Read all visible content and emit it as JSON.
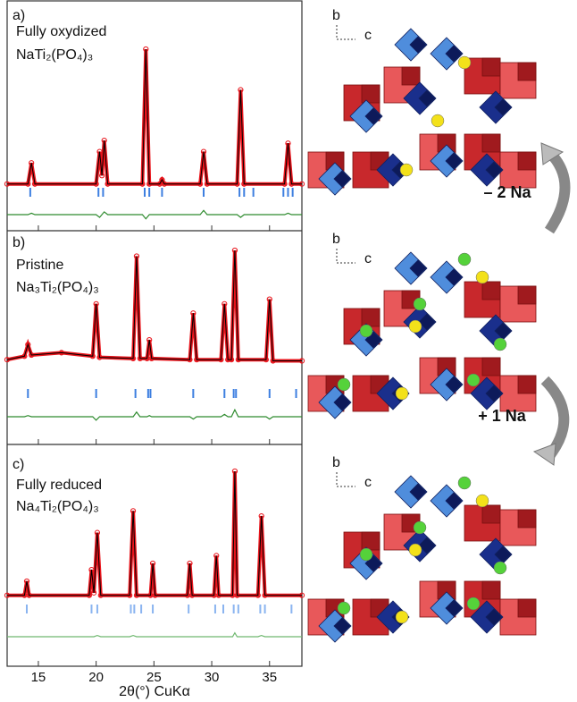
{
  "chart_data": [
    {
      "type": "line",
      "panel": "a)",
      "title": "Fully oxydized",
      "subtitle": "NaTi₂(PO₄)₃",
      "xlim": [
        12.3,
        37.8
      ],
      "ylim": [
        0,
        100
      ],
      "xticks": [
        15,
        20,
        25,
        30,
        35
      ],
      "color": "#e8141b",
      "calc_color": "#000000",
      "diff_color": "#2e8b2e",
      "tick_color": "#3d7fe0",
      "x": [
        12.3,
        14.1,
        14.4,
        14.7,
        20.0,
        20.3,
        20.5,
        20.7,
        21.0,
        24.0,
        24.3,
        24.6,
        25.5,
        25.7,
        25.9,
        29.0,
        29.3,
        29.6,
        32.2,
        32.5,
        32.8,
        36.3,
        36.6,
        36.9,
        37.8
      ],
      "values": [
        4,
        4,
        19,
        4,
        4,
        27,
        10,
        35,
        4,
        4,
        100,
        4,
        4,
        7,
        4,
        4,
        27,
        4,
        4,
        71,
        4,
        4,
        33,
        4,
        4
      ],
      "difference": [
        0,
        0,
        1,
        0,
        0,
        -2,
        0,
        2,
        0,
        0,
        -3,
        0,
        0,
        0,
        0,
        0,
        3,
        0,
        0,
        -2,
        0,
        0,
        1,
        0,
        0
      ],
      "reflections": [
        14.3,
        20.2,
        20.6,
        24.2,
        24.6,
        25.7,
        29.3,
        32.4,
        32.8,
        33.6,
        36.2,
        36.6,
        37.0
      ]
    },
    {
      "type": "line",
      "panel": "b)",
      "title": "Pristine",
      "subtitle": "Na₃Ti₂(PO₄)₃",
      "xlim": [
        12.3,
        37.8
      ],
      "ylim": [
        0,
        100
      ],
      "xticks": [
        15,
        20,
        25,
        30,
        35
      ],
      "color": "#e8141b",
      "calc_color": "#000000",
      "diff_color": "#2e8b2e",
      "tick_color": "#3d7fe0",
      "x": [
        12.3,
        13.8,
        14.1,
        14.4,
        17,
        19.7,
        20.0,
        20.3,
        23.2,
        23.5,
        23.8,
        24.4,
        24.6,
        24.8,
        28.1,
        28.4,
        28.7,
        30.8,
        31.1,
        31.4,
        31.7,
        32.0,
        32.3,
        34.7,
        35.0,
        35.3,
        37.8
      ],
      "values": [
        6,
        9,
        19,
        10,
        12,
        9,
        54,
        8,
        7,
        95,
        7,
        7,
        23,
        7,
        6,
        46,
        6,
        6,
        54,
        6,
        6,
        100,
        6,
        6,
        58,
        5,
        5
      ],
      "difference": [
        0,
        0,
        1,
        0,
        0,
        0,
        -3,
        0,
        0,
        4,
        0,
        0,
        1,
        0,
        0,
        -2,
        0,
        0,
        2,
        0,
        0,
        6,
        0,
        0,
        -2,
        0,
        0
      ],
      "reflections": [
        14.1,
        20.0,
        23.4,
        24.5,
        24.7,
        28.4,
        31.1,
        31.9,
        32.1,
        35.0,
        37.3
      ]
    },
    {
      "type": "line",
      "panel": "c)",
      "title": "Fully reduced",
      "subtitle": "Na₄Ti₂(PO₄)₃",
      "xlim": [
        12.3,
        37.8
      ],
      "ylim": [
        0,
        100
      ],
      "xticks": [
        15,
        20,
        25,
        30,
        35
      ],
      "xlabel": "2θ(°) CuKα",
      "color": "#e8141b",
      "calc_color": "#000000",
      "diff_color": "#6fb86f",
      "tick_color": "#8ab4f0",
      "x": [
        12.3,
        13.8,
        14.0,
        14.2,
        19.4,
        19.6,
        19.8,
        20.1,
        20.4,
        22.9,
        23.2,
        23.5,
        24.7,
        24.9,
        25.1,
        27.9,
        28.1,
        28.3,
        30.2,
        30.4,
        30.6,
        31.8,
        32.0,
        32.2,
        34.0,
        34.3,
        34.6,
        37.8
      ],
      "values": [
        3,
        3,
        14,
        3,
        3,
        23,
        5,
        52,
        3,
        3,
        69,
        3,
        3,
        28,
        3,
        3,
        28,
        3,
        3,
        34,
        3,
        3,
        100,
        3,
        3,
        65,
        3,
        3
      ],
      "difference": [
        0,
        0,
        0,
        0,
        0,
        0,
        0,
        1,
        0,
        0,
        1,
        0,
        0,
        0,
        0,
        0,
        0,
        0,
        0,
        0,
        0,
        0,
        3,
        0,
        0,
        1,
        0,
        0
      ],
      "reflections": [
        14.0,
        19.6,
        20.1,
        23.0,
        23.3,
        23.9,
        24.9,
        28.0,
        30.3,
        31.0,
        31.9,
        32.3,
        34.2,
        34.6,
        36.9
      ]
    }
  ],
  "structure": {
    "axis_b": "b",
    "axis_c": "c",
    "step_1": "– 2 Na",
    "step_2": "+ 1 Na"
  }
}
